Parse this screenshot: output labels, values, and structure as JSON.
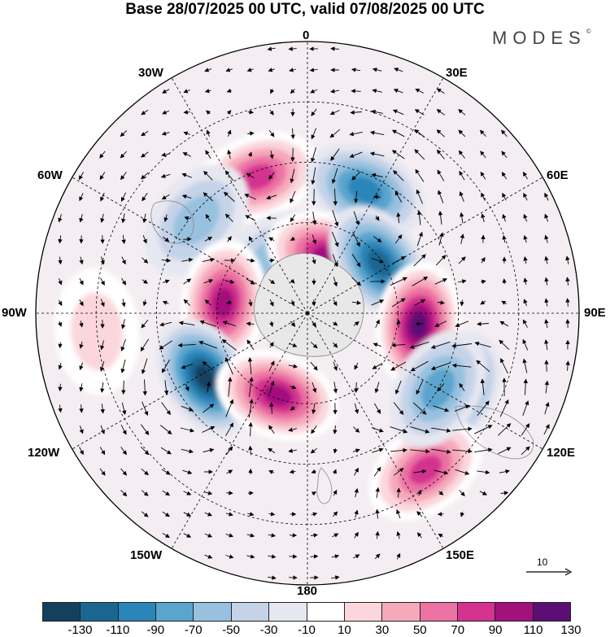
{
  "title": "Base 28/07/2025 00 UTC, valid 07/08/2025 00 UTC",
  "brand": {
    "text": "MODES",
    "mark": "©"
  },
  "longitude_labels": {
    "top": "0",
    "bottom": "180",
    "left": "90W",
    "right": "90E",
    "w30": "30W",
    "e30": "30E",
    "w60": "60W",
    "e60": "60E",
    "w120": "120W",
    "e120": "120E",
    "w150": "150W",
    "e150": "150E"
  },
  "reference_vector": {
    "label": "10",
    "icon": "arrow-right-icon"
  },
  "colorbar": {
    "colors": [
      "#14405e",
      "#1a6690",
      "#2a85b8",
      "#5aa4cd",
      "#97c1de",
      "#c5d3e8",
      "#e6e7f0",
      "#ffffff",
      "#fbd7dd",
      "#f6a9bb",
      "#ec72a3",
      "#d4338f",
      "#a3117d",
      "#5b0f74"
    ],
    "ticks": [
      "-130",
      "-110",
      "-90",
      "-70",
      "-50",
      "-30",
      "-10",
      "10",
      "30",
      "50",
      "70",
      "90",
      "110",
      "130"
    ]
  },
  "field_colors": {
    "neutral": "#f2f2f2",
    "land": "#e8e8e8",
    "coast": "#888888",
    "wind": "#000000",
    "grid": "#000000"
  },
  "anomaly_centers": [
    {
      "id": "a1",
      "lon": "20W",
      "lat": 42,
      "value": 90
    },
    {
      "id": "a2",
      "lon": "25E",
      "lat": 45,
      "value": -90
    },
    {
      "id": "a3",
      "lon": "50W",
      "lat": 42,
      "value": -50
    },
    {
      "id": "a4",
      "lon": "30W",
      "lat": 69,
      "value": -50
    },
    {
      "id": "a5",
      "lon": "20E",
      "lat": 70,
      "value": 110
    },
    {
      "id": "a6",
      "lon": "55E",
      "lat": 61,
      "value": -110
    },
    {
      "id": "a7",
      "lon": "83W",
      "lat": 62,
      "value": 110
    },
    {
      "id": "a8",
      "lon": "96E",
      "lat": 53,
      "value": 130
    },
    {
      "id": "a9",
      "lon": "122W",
      "lat": 50,
      "value": -130
    },
    {
      "id": "a10",
      "lon": "160W",
      "lat": 61,
      "value": 110
    },
    {
      "id": "a11",
      "lon": "118E",
      "lat": 35,
      "value": -110
    },
    {
      "id": "a12",
      "lon": "143E",
      "lat": 25,
      "value": 90
    },
    {
      "id": "a13",
      "lon": "95W",
      "lat": 20,
      "value": 30
    },
    {
      "id": "a14",
      "lon": "120E",
      "lat": 40,
      "value": -70
    }
  ]
}
